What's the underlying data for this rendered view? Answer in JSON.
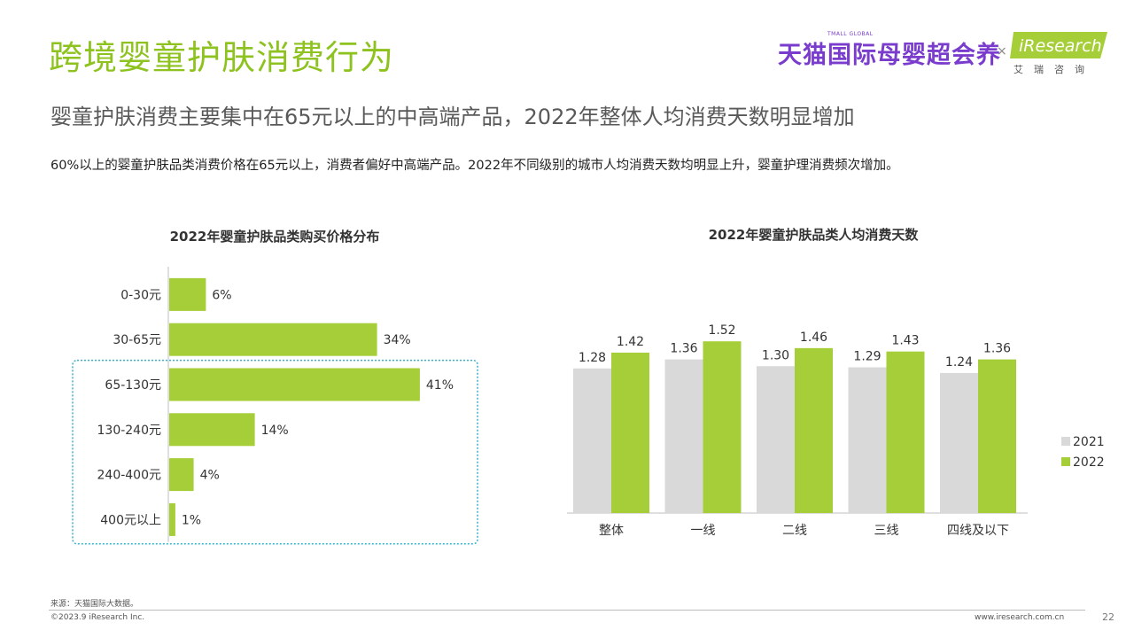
{
  "header": {
    "title": "跨境婴童护肤消费行为",
    "subtitle": "婴童护肤消费主要集中在65元以上的中高端产品，2022年整体人均消费天数明显增加",
    "description": "60%以上的婴童护肤品类消费价格在65元以上，消费者偏好中高端产品。2022年不同级别的城市人均消费天数均明显上升，婴童护理消费频次增加。"
  },
  "logos": {
    "tmall_text": "天猫国际母婴超会养",
    "tmall_small": "TMALL GLOBAL",
    "separator": "×",
    "iresearch_text": "iResearch",
    "iresearch_cn": "艾瑞咨询"
  },
  "colors": {
    "accent": "#8dc21f",
    "bar_green": "#a6ce39",
    "bar_gray": "#d9d9d9",
    "highlight_border": "#3ab0c8",
    "logo_purple": "#7a3ccc"
  },
  "chart_data": [
    {
      "type": "bar",
      "orientation": "horizontal",
      "title": "2022年婴童护肤品类购买价格分布",
      "categories": [
        "0-30元",
        "30-65元",
        "65-130元",
        "130-240元",
        "240-400元",
        "400元以上"
      ],
      "values": [
        6,
        34,
        41,
        14,
        4,
        1
      ],
      "value_labels": [
        "6%",
        "34%",
        "41%",
        "14%",
        "4%",
        "1%"
      ],
      "unit": "%",
      "highlighted_categories": [
        "65-130元",
        "130-240元",
        "240-400元",
        "400元以上"
      ]
    },
    {
      "type": "bar",
      "title": "2022年婴童护肤品类人均消费天数",
      "categories": [
        "整体",
        "一线",
        "二线",
        "三线",
        "四线及以下"
      ],
      "series": [
        {
          "name": "2021",
          "values": [
            1.28,
            1.36,
            1.3,
            1.29,
            1.24
          ],
          "color": "#d9d9d9"
        },
        {
          "name": "2022",
          "values": [
            1.42,
            1.52,
            1.46,
            1.43,
            1.36
          ],
          "color": "#a6ce39"
        }
      ],
      "legend": "right"
    }
  ],
  "footer": {
    "source": "来源：天猫国际大数据。",
    "copyright": "©2023.9 iResearch Inc.",
    "website": "www.iresearch.com.cn",
    "page": "22"
  }
}
